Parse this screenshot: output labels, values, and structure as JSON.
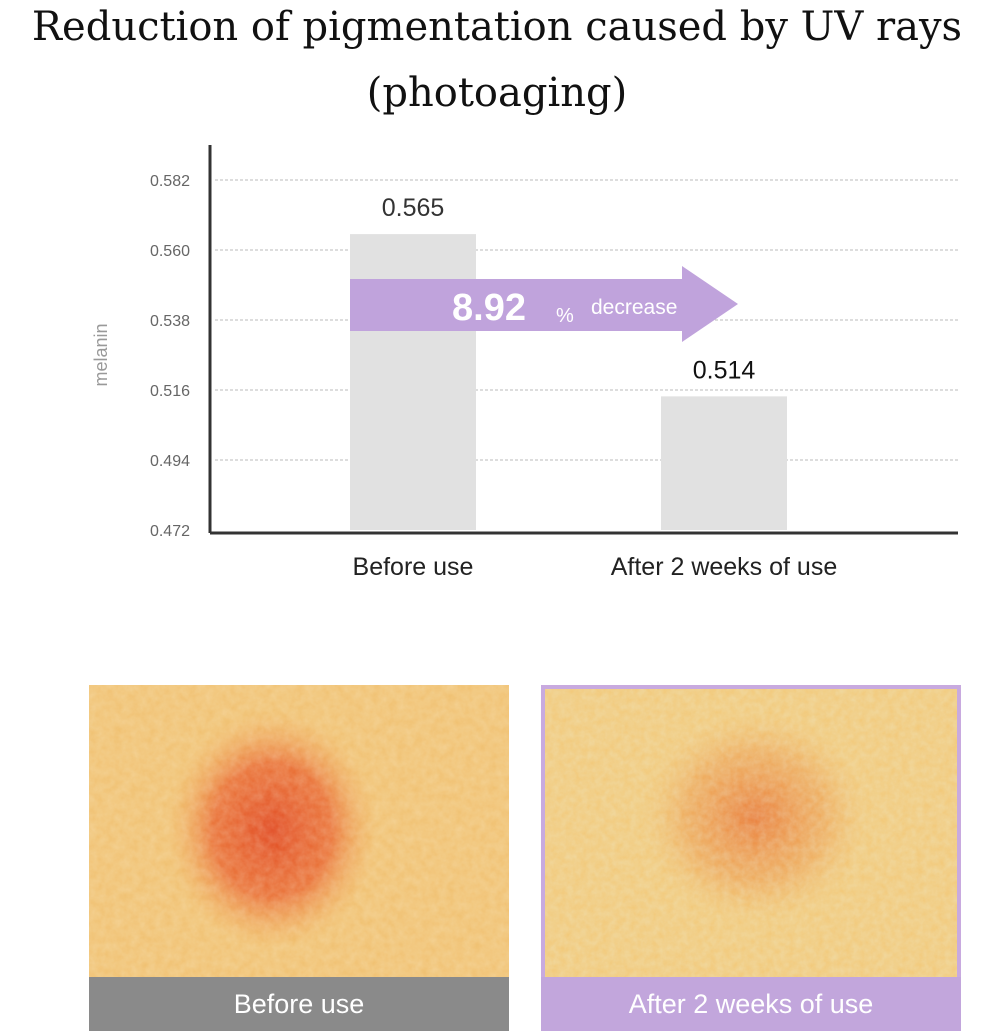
{
  "title_line1": "Reduction of pigmentation caused by UV rays",
  "title_line2": "(photoaging)",
  "chart_data": {
    "type": "bar",
    "categories": [
      "Before use",
      "After 2 weeks of use"
    ],
    "values": [
      0.565,
      0.514
    ],
    "value_labels": [
      "0.565",
      "0.514"
    ],
    "title": "Reduction of pigmentation caused by UV rays (photoaging)",
    "xlabel": "",
    "ylabel": "melanin",
    "ylim": [
      0.472,
      0.582
    ],
    "yticks": [
      "0.582",
      "0.560",
      "0.538",
      "0.516",
      "0.494",
      "0.472"
    ],
    "grid": true,
    "annotation": {
      "value": "8.92",
      "unit": "%",
      "text": "decrease"
    }
  },
  "photos": [
    {
      "caption": "Before use",
      "caption_color": "#8a8a8a"
    },
    {
      "caption": "After 2 weeks of use",
      "caption_color": "#c2a6dc"
    }
  ],
  "colors": {
    "bar": "#e1e1e1",
    "arrow": "#c0a3dc",
    "axis": "#333333",
    "grid": "#bbbbbb"
  }
}
